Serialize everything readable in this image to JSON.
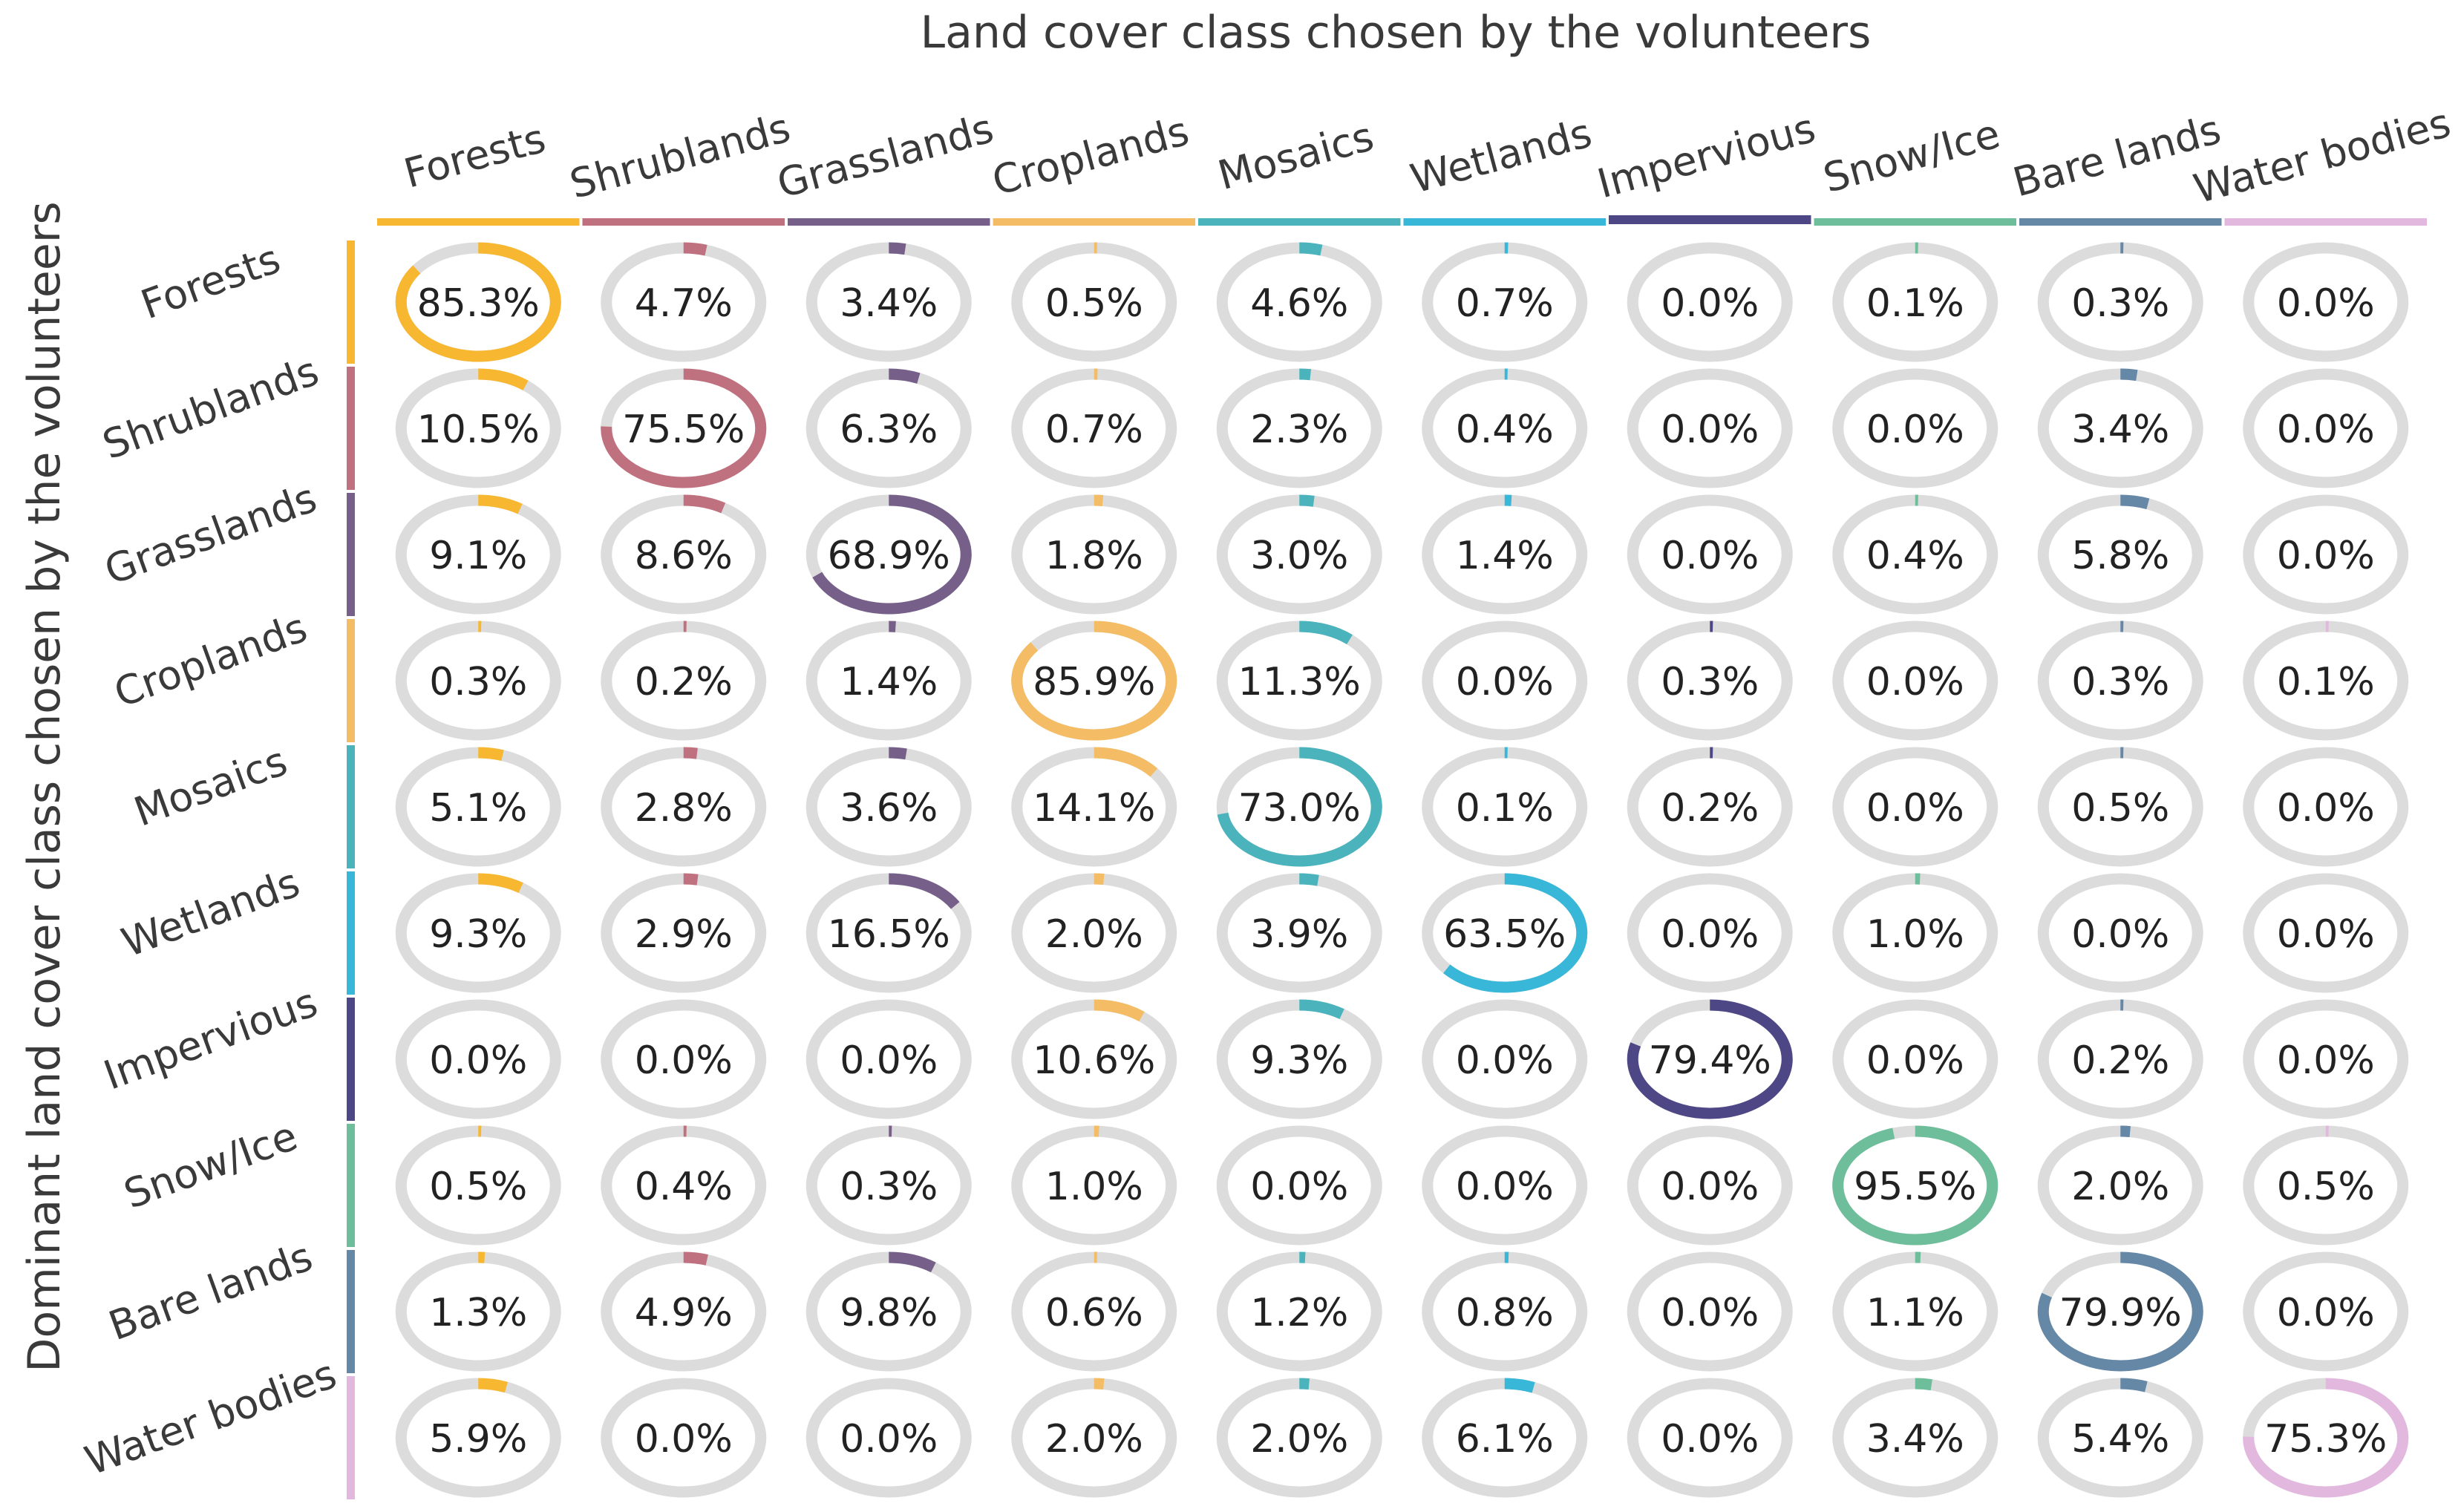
{
  "chart_data": {
    "type": "heatmap",
    "style": "donut-matrix",
    "title": "Land cover class chosen by the volunteers",
    "ylabel": "Dominant land cover class chosen by the volunteers",
    "columns": [
      "Forests",
      "Shrublands",
      "Grasslands",
      "Croplands",
      "Mosaics",
      "Wetlands",
      "Impervious",
      "Snow/Ice",
      "Bare lands",
      "Water bodies"
    ],
    "rows": [
      "Forests",
      "Shrublands",
      "Grasslands",
      "Croplands",
      "Mosaics",
      "Wetlands",
      "Impervious",
      "Snow/Ice",
      "Bare lands",
      "Water bodies"
    ],
    "colors": [
      "#F7B731",
      "#C0717F",
      "#766089",
      "#F4BC64",
      "#4BB3BC",
      "#39B7D8",
      "#4D4785",
      "#6FBE9B",
      "#6688A7",
      "#E3B8DF"
    ],
    "track_color": "#DCDCDC",
    "unit": "%",
    "values": [
      [
        85.3,
        4.7,
        3.4,
        0.5,
        4.6,
        0.7,
        0.0,
        0.1,
        0.3,
        0.0
      ],
      [
        10.5,
        75.5,
        6.3,
        0.7,
        2.3,
        0.4,
        0.0,
        0.0,
        3.4,
        0.0
      ],
      [
        9.1,
        8.6,
        68.9,
        1.8,
        3.0,
        1.4,
        0.0,
        0.4,
        5.8,
        0.0
      ],
      [
        0.3,
        0.2,
        1.4,
        85.9,
        11.3,
        0.0,
        0.3,
        0.0,
        0.3,
        0.1
      ],
      [
        5.1,
        2.8,
        3.6,
        14.1,
        73.0,
        0.1,
        0.2,
        0.0,
        0.5,
        0.0
      ],
      [
        9.3,
        2.9,
        16.5,
        2.0,
        3.9,
        63.5,
        0.0,
        1.0,
        0.0,
        0.0
      ],
      [
        0.0,
        0.0,
        0.0,
        10.6,
        9.3,
        0.0,
        79.4,
        0.0,
        0.2,
        0.0
      ],
      [
        0.5,
        0.4,
        0.3,
        1.0,
        0.0,
        0.0,
        0.0,
        95.5,
        2.0,
        0.5
      ],
      [
        1.3,
        4.9,
        9.8,
        0.6,
        1.2,
        0.8,
        0.0,
        1.1,
        79.9,
        0.0
      ],
      [
        5.9,
        0.0,
        0.0,
        2.0,
        2.0,
        6.1,
        0.0,
        3.4,
        5.4,
        75.3
      ]
    ]
  }
}
